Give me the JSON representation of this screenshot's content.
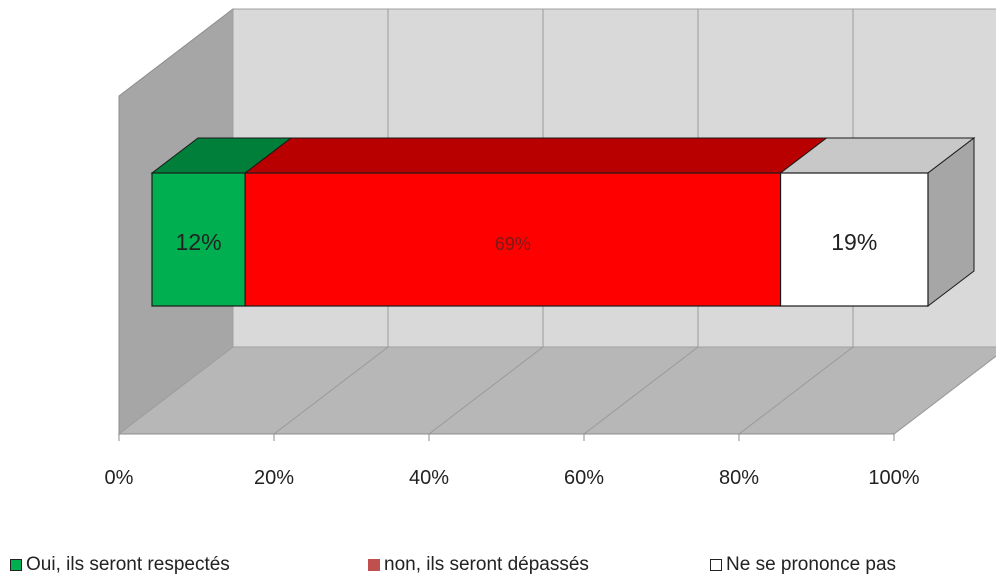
{
  "chart_data": {
    "type": "bar",
    "orientation": "horizontal",
    "stacked": true,
    "percent_scale": true,
    "three_d": true,
    "title": "",
    "xlabel": "",
    "ylabel": "",
    "xlim": [
      0,
      100
    ],
    "x_ticks": [
      "0%",
      "20%",
      "40%",
      "60%",
      "80%",
      "100%"
    ],
    "x_tick_values": [
      0,
      20,
      40,
      60,
      80,
      100
    ],
    "grid": true,
    "legend_position": "bottom",
    "categories": [
      ""
    ],
    "series": [
      {
        "name": "Oui, ils seront respectés",
        "values": [
          12
        ],
        "label": "12%",
        "color": "#00b050",
        "legend_color": "#00b050"
      },
      {
        "name": "non, ils seront dépassés",
        "values": [
          69
        ],
        "label": "69%",
        "color": "#ff0000",
        "legend_color": "#c0504d"
      },
      {
        "name": "Ne se prononce pas",
        "values": [
          19
        ],
        "label": "19%",
        "color": "#ffffff",
        "legend_color": "#ffffff"
      }
    ]
  }
}
